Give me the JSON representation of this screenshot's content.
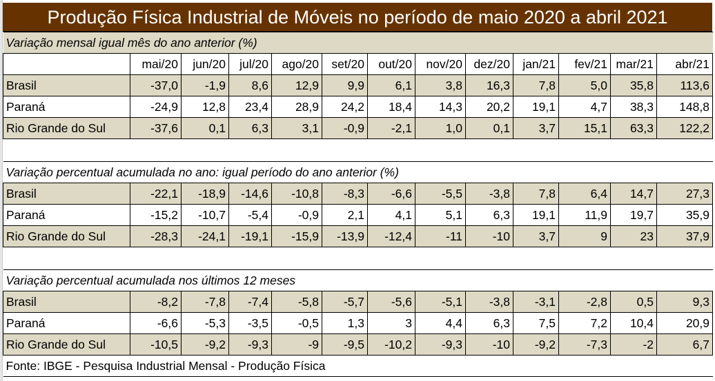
{
  "title": "Produção Física Industrial de Móveis no período de maio 2020 a abril 2021",
  "months": [
    "mai/20",
    "jun/20",
    "jul/20",
    "ago/20",
    "set/20",
    "out/20",
    "nov/20",
    "dez/20",
    "jan/21",
    "fev/21",
    "mar/21",
    "abr/21"
  ],
  "colors": {
    "title_bg": "#663300",
    "beige": "#ddd9c4"
  },
  "sections": [
    {
      "heading": "Variação  mensal igual mês do ano anterior (%)",
      "rows": [
        {
          "label": "Brasil",
          "values": [
            "-37,0",
            "-1,9",
            "8,6",
            "12,9",
            "9,9",
            "6,1",
            "3,8",
            "16,3",
            "7,8",
            "5,0",
            "35,8",
            "113,6"
          ]
        },
        {
          "label": "Paraná",
          "values": [
            "-24,9",
            "12,8",
            "23,4",
            "28,9",
            "24,2",
            "18,4",
            "14,3",
            "20,2",
            "19,1",
            "4,7",
            "38,3",
            "148,8"
          ]
        },
        {
          "label": "Rio Grande do Sul",
          "values": [
            "-37,6",
            "0,1",
            "6,3",
            "3,1",
            "-0,9",
            "-2,1",
            "1,0",
            "0,1",
            "3,7",
            "15,1",
            "63,3",
            "122,2"
          ]
        }
      ]
    },
    {
      "heading": "Variação percentual acumulada no ano: igual período do ano anterior (%)",
      "rows": [
        {
          "label": "Brasil",
          "values": [
            "-22,1",
            "-18,9",
            "-14,6",
            "-10,8",
            "-8,3",
            "-6,6",
            "-5,5",
            "-3,8",
            "7,8",
            "6,4",
            "14,7",
            "27,3"
          ]
        },
        {
          "label": "Paraná",
          "values": [
            "-15,2",
            "-10,7",
            "-5,4",
            "-0,9",
            "2,1",
            "4,1",
            "5,1",
            "6,3",
            "19,1",
            "11,9",
            "19,7",
            "35,9"
          ]
        },
        {
          "label": "Rio Grande do Sul",
          "values": [
            "-28,3",
            "-24,1",
            "-19,1",
            "-15,9",
            "-13,9",
            "-12,4",
            "-11",
            "-10",
            "3,7",
            "9",
            "23",
            "37,9"
          ]
        }
      ]
    },
    {
      "heading": "Variação percentual acumulada nos últimos 12 meses",
      "rows": [
        {
          "label": "Brasil",
          "values": [
            "-8,2",
            "-7,8",
            "-7,4",
            "-5,8",
            "-5,7",
            "-5,6",
            "-5,1",
            "-3,8",
            "-3,1",
            "-2,8",
            "0,5",
            "9,3"
          ]
        },
        {
          "label": "Paraná",
          "values": [
            "-6,6",
            "-5,3",
            "-3,5",
            "-0,5",
            "1,3",
            "3",
            "4,4",
            "6,3",
            "7,5",
            "7,2",
            "10,4",
            "20,9"
          ]
        },
        {
          "label": "Rio Grande do Sul",
          "values": [
            "-10,5",
            "-9,2",
            "-9,3",
            "-9",
            "-9,5",
            "-10,2",
            "-9,3",
            "-10",
            "-9,2",
            "-7,3",
            "-2",
            "6,7"
          ]
        }
      ]
    }
  ],
  "source": "Fonte: IBGE - Pesquisa Industrial Mensal - Produção Física"
}
